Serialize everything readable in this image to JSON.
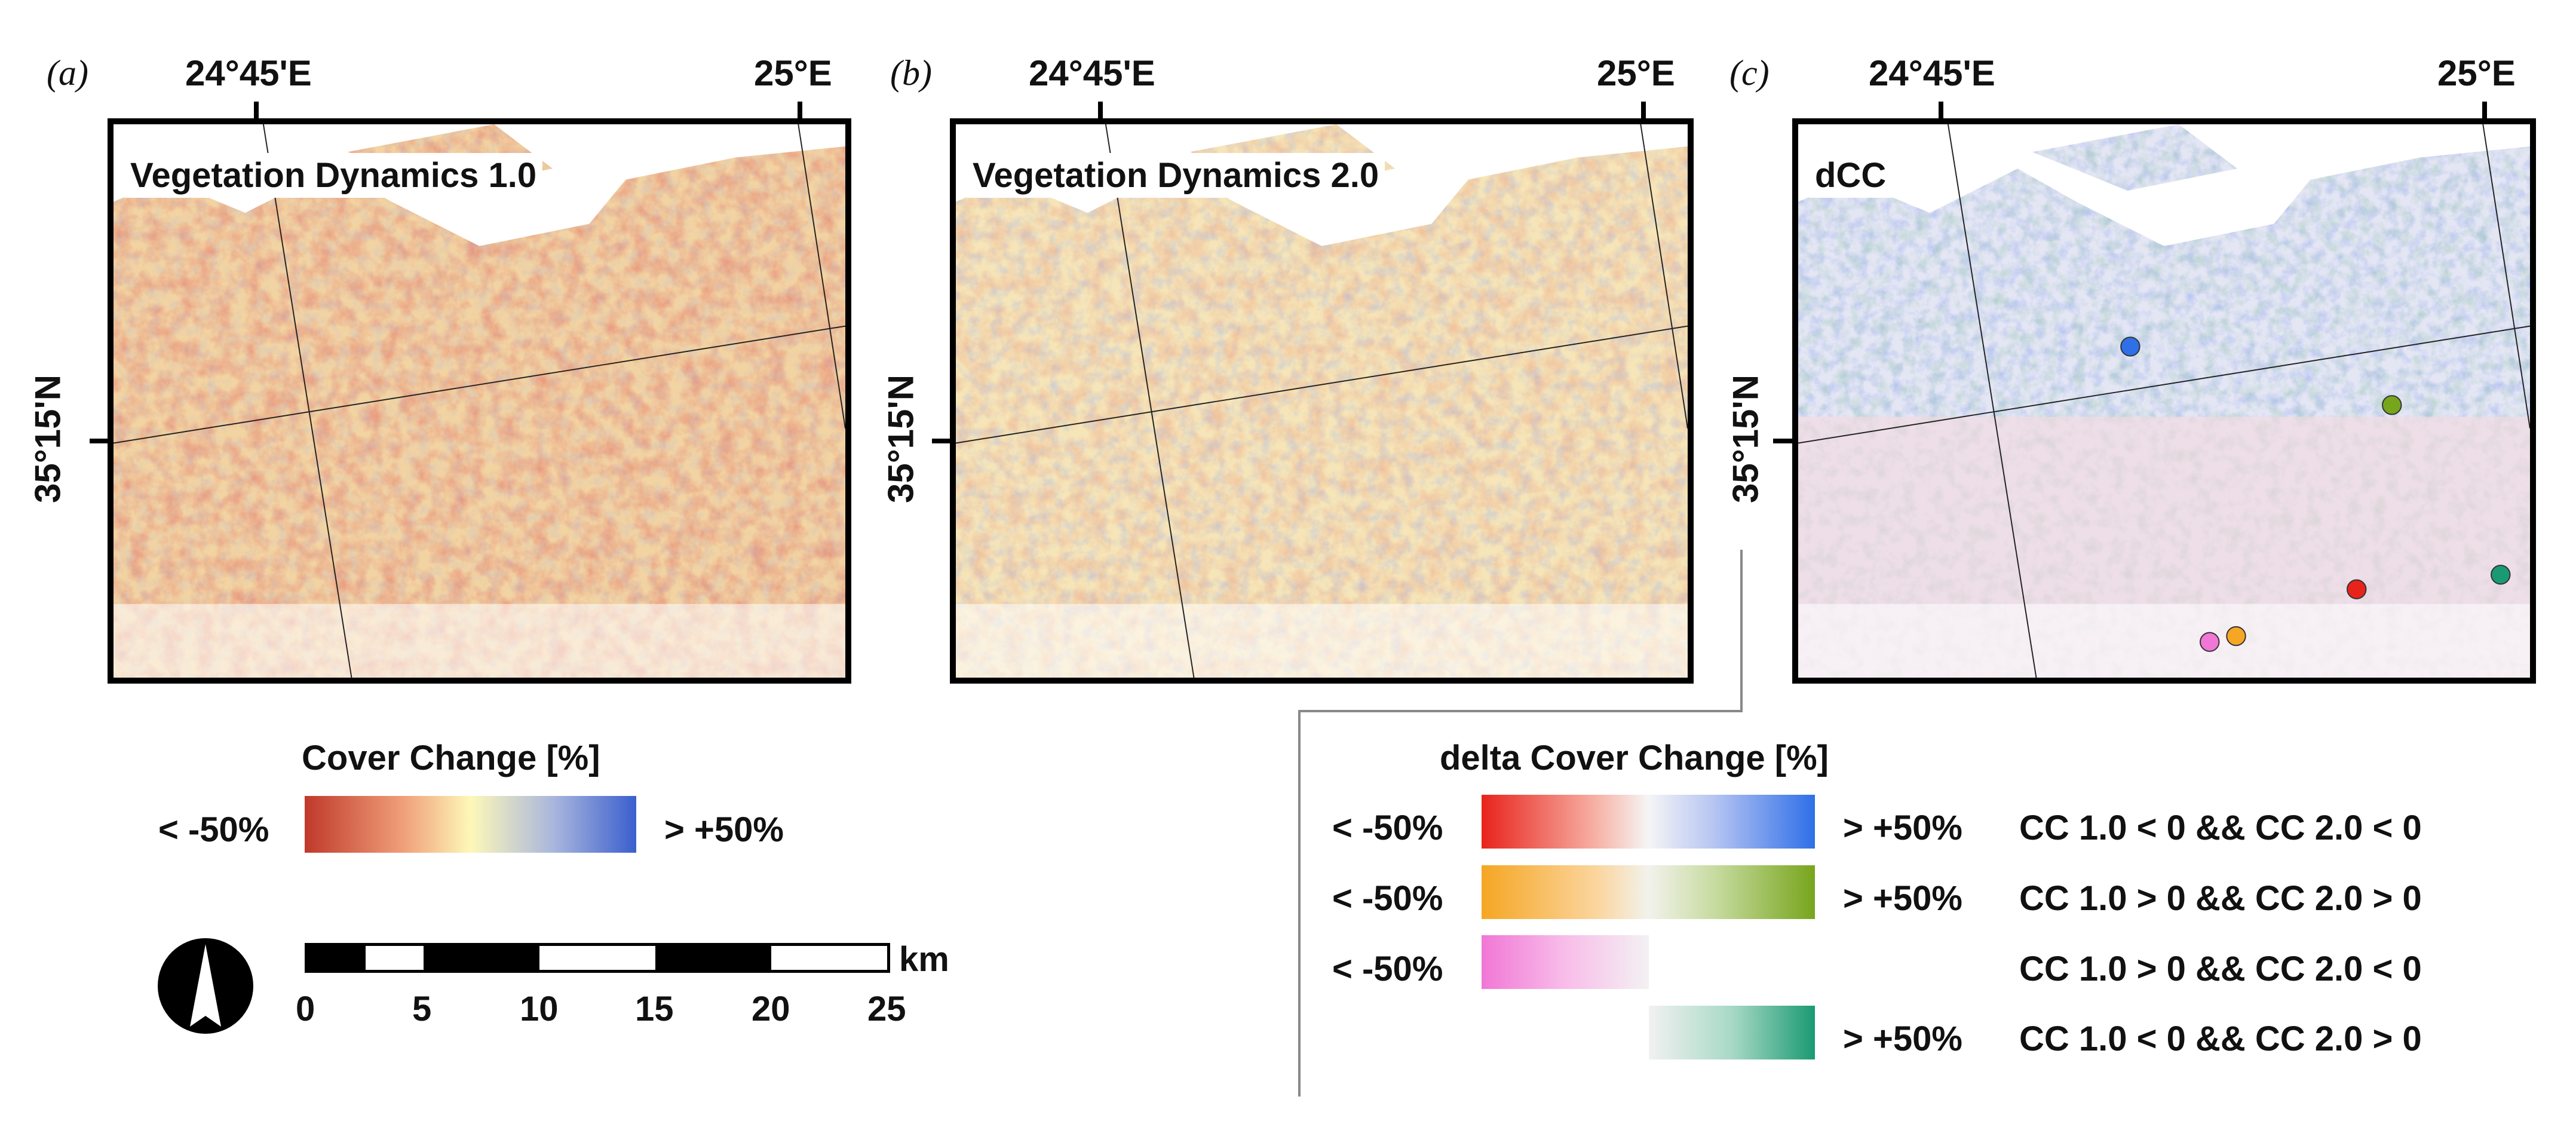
{
  "panels": [
    {
      "letter": "(a)",
      "title": "Vegetation Dynamics 1.0",
      "lon_left": "24°45'E",
      "lon_right": "25°E",
      "lat": "35°15'N"
    },
    {
      "letter": "(b)",
      "title": "Vegetation Dynamics 2.0",
      "lon_left": "24°45'E",
      "lon_right": "25°E",
      "lat": "35°15'N"
    },
    {
      "letter": "(c)",
      "title": "dCC",
      "lon_left": "24°45'E",
      "lon_right": "25°E",
      "lat": "35°15'N"
    }
  ],
  "legend_cc": {
    "title": "Cover Change [%]",
    "low": "< -50%",
    "high": "> +50%"
  },
  "legend_dcc": {
    "title": "delta Cover Change [%]",
    "rows": [
      {
        "low": "< -50%",
        "high": "> +50%",
        "condition": "CC 1.0 < 0 && CC 2.0 < 0",
        "color_low": "#e8231c",
        "color_high": "#2f6fe8"
      },
      {
        "low": "< -50%",
        "high": "> +50%",
        "condition": "CC 1.0 > 0 && CC 2.0 > 0",
        "color_low": "#f5a623",
        "color_high": "#77a51c"
      },
      {
        "low": "< -50%",
        "high": "",
        "condition": "CC 1.0 > 0 && CC 2.0 < 0",
        "color_low": "#f177d6",
        "color_high": ""
      },
      {
        "low": "",
        "high": "> +50%",
        "condition": "CC 1.0 < 0 && CC 2.0 > 0",
        "color_low": "",
        "color_high": "#1a9a72"
      }
    ]
  },
  "scale_bar": {
    "unit": "km",
    "ticks": [
      "0",
      "5",
      "10",
      "15",
      "20",
      "25"
    ]
  },
  "north_arrow": "north-arrow-icon",
  "colors": {
    "red": "#c0392b",
    "yellow": "#fdf5b0",
    "blue": "#3a5fcd"
  }
}
